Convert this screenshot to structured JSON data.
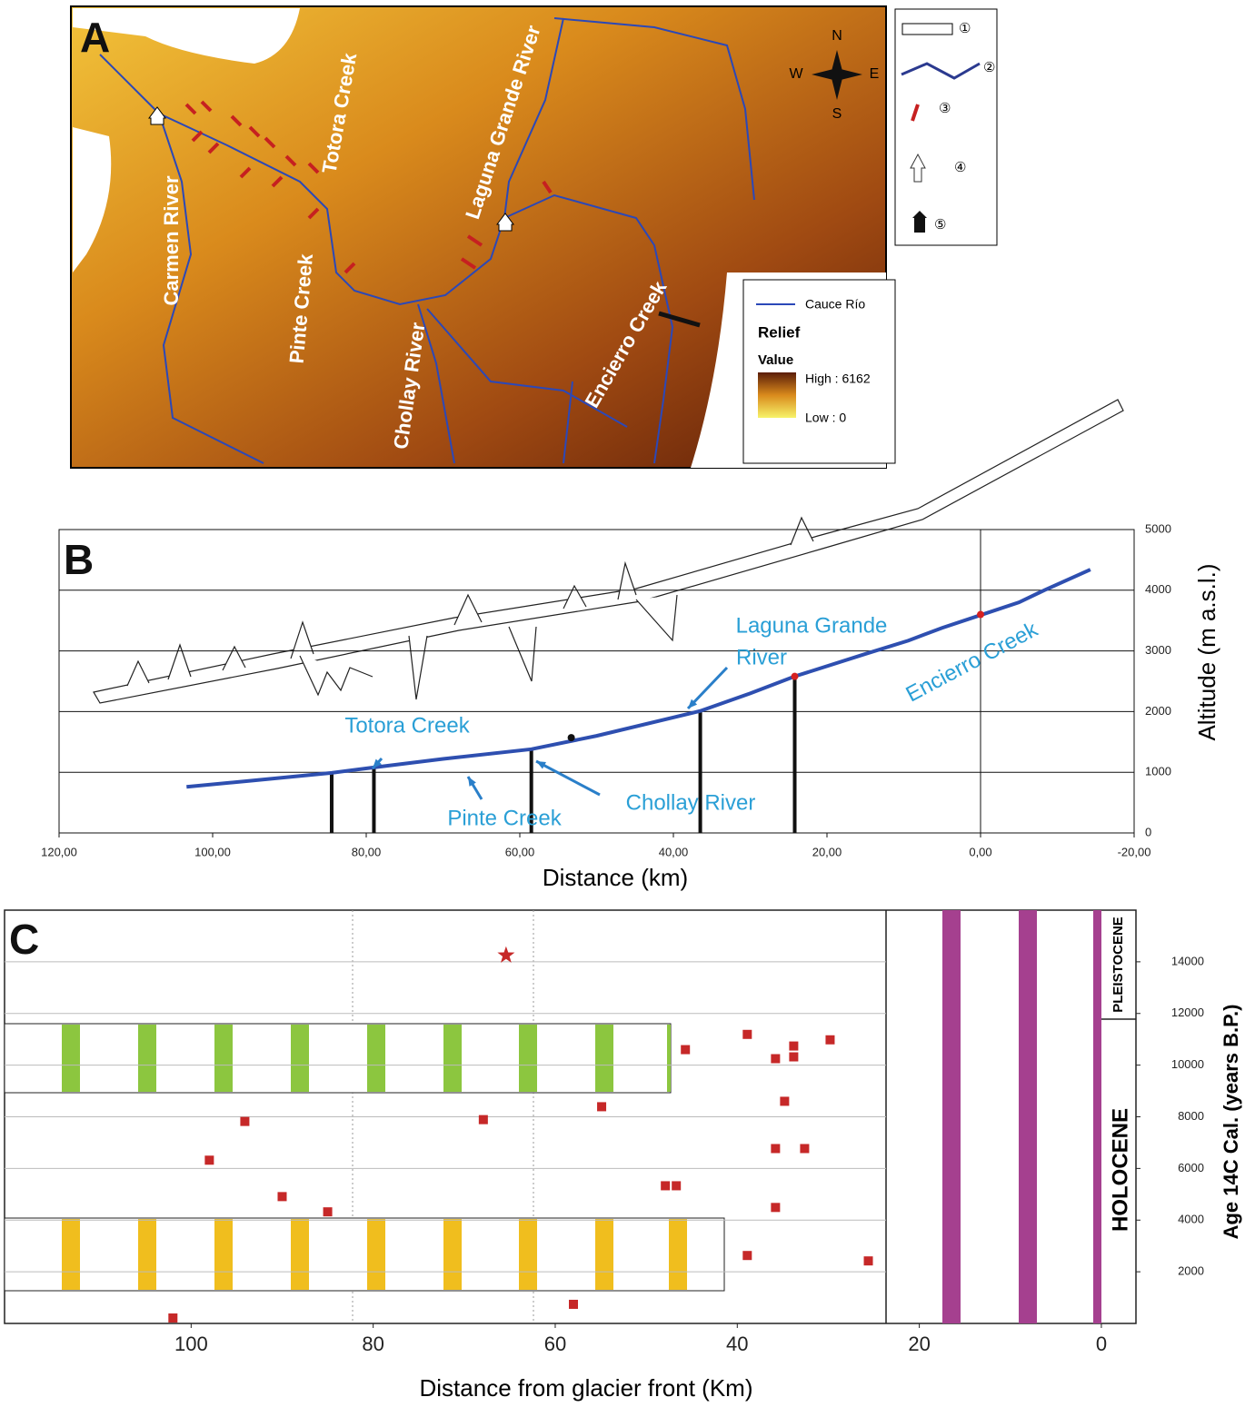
{
  "panel_a": {
    "letter": "A",
    "rivers": [
      "Carmen River",
      "Totora Creek",
      "Laguna Grande River",
      "Pinte Creek",
      "Chollay River",
      "Encierro Creek"
    ],
    "compass": {
      "n": "N",
      "s": "S",
      "w": "W",
      "e": "E"
    },
    "key": [
      "①",
      "②",
      "③",
      "④",
      "⑤"
    ],
    "legend": {
      "line": "Cauce Río",
      "title": "Relief",
      "subtitle": "Value",
      "high": "High : 6162",
      "low": "Low : 0"
    }
  },
  "chart_data": [
    {
      "type": "line",
      "letter": "B",
      "x_label": "Distance (km)",
      "y_label": "Altitude (m a.s.l.)",
      "xlim": [
        120,
        -20
      ],
      "xticks": [
        {
          "value": 120,
          "label": "120,00"
        },
        {
          "value": 100,
          "label": "100,00"
        },
        {
          "value": 80,
          "label": "80,00"
        },
        {
          "value": 60,
          "label": "60,00"
        },
        {
          "value": 40,
          "label": "40,00"
        },
        {
          "value": 20,
          "label": "20,00"
        },
        {
          "value": 0,
          "label": "0,00"
        },
        {
          "value": -20,
          "label": "-20,00"
        }
      ],
      "ylim": [
        0,
        5000
      ],
      "yticks": [
        0,
        1000,
        2000,
        3000,
        4000,
        5000
      ],
      "grid": true,
      "color": "#2e4fb0",
      "x": [
        103.4,
        95,
        84.5,
        79,
        70,
        58.5,
        50,
        36.5,
        30,
        24.2,
        15,
        9.4,
        5,
        0,
        -5,
        -8.3,
        -14.3
      ],
      "values": [
        760,
        860,
        990,
        1080,
        1220,
        1380,
        1600,
        2010,
        2300,
        2580,
        2950,
        3170,
        3380,
        3590,
        3800,
        4000,
        4340
      ],
      "confluences": [
        84.5,
        79,
        58.5,
        36.5,
        24.2
      ],
      "markers": {
        "x": [
          0,
          24.2,
          53.3
        ],
        "values": [
          3600,
          2580,
          1570
        ],
        "colors": [
          "#d62020",
          "#d62020",
          "#111111"
        ]
      },
      "annotations": [
        "Totora Creek",
        "Pinte Creek",
        "Chollay River",
        "Laguna Grande",
        "River",
        "Encierro Creek"
      ]
    },
    {
      "type": "scatter",
      "letter": "C",
      "x_label": "Distance from glacier front (Km)",
      "y_label": "Age 14C Cal. (years B.P.)",
      "xlim": [
        120.5,
        -3.8
      ],
      "xticks": [
        100,
        80,
        60,
        40,
        20,
        0
      ],
      "ylim": [
        0,
        16000
      ],
      "yticks": [
        2000,
        4000,
        6000,
        8000,
        10000,
        12000,
        14000
      ],
      "grid": true,
      "color": "#c62828",
      "x": [
        102,
        58,
        38.9,
        25.6,
        85,
        35.8,
        90,
        47.9,
        46.7,
        98,
        35.8,
        32.6,
        94.1,
        67.9,
        54.9,
        34.8,
        45.7,
        35.8,
        33.8,
        33.8,
        38.9,
        29.8
      ],
      "values": [
        210,
        740,
        2630,
        2420,
        4320,
        4490,
        4910,
        5330,
        5330,
        6320,
        6770,
        6770,
        7820,
        7890,
        8390,
        8600,
        10600,
        10250,
        10320,
        10740,
        11190,
        10980
      ],
      "star": {
        "x": 65.4,
        "value": 14250
      },
      "periods": [
        "PLEISTOCENE",
        "HOLOCENE"
      ]
    }
  ]
}
